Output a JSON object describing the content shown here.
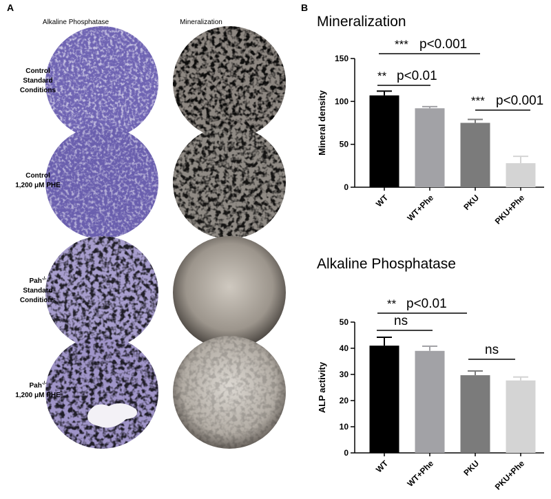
{
  "panel_a": {
    "label": "A",
    "columns": [
      "Alkaline Phosphatase",
      "Mineralization"
    ],
    "rows": [
      {
        "lines": [
          "Control",
          "Standard",
          "Conditions"
        ]
      },
      {
        "lines": [
          "Control",
          "1,200 μM PHE"
        ]
      },
      {
        "name": "Pah",
        "sup": "-/-",
        "lines": [
          "Standard",
          "Conditions"
        ]
      },
      {
        "name": "Pah",
        "sup": "-/-",
        "lines": [
          "1,200 μM PHE"
        ]
      }
    ]
  },
  "panel_b_label": "B",
  "chart_data": [
    {
      "type": "bar",
      "title": "Mineralization",
      "y_label": "Mineral density",
      "categories": [
        "WT",
        "WT+Phe",
        "PKU",
        "PKU+Phe"
      ],
      "values": [
        107,
        92,
        75,
        28
      ],
      "errors": [
        5,
        2,
        4,
        8
      ],
      "colors": [
        "#000000",
        "#a2a2a6",
        "#7b7b7b",
        "#d4d4d4"
      ],
      "ylim": [
        0,
        150
      ],
      "yticks": [
        0,
        50,
        100,
        150
      ],
      "annotations": [
        {
          "stars": "***",
          "label": "p<0.001"
        },
        {
          "stars": "**",
          "label": "p<0.01"
        },
        {
          "stars": "***",
          "label": "p<0.001"
        }
      ]
    },
    {
      "type": "bar",
      "title": "Alkaline Phosphatase",
      "y_label": "ALP activity",
      "categories": [
        "WT",
        "WT+Phe",
        "PKU",
        "PKU+Phe"
      ],
      "values": [
        41,
        39,
        29.7,
        27.7
      ],
      "errors": [
        3.2,
        1.8,
        1.6,
        1.3
      ],
      "colors": [
        "#000000",
        "#a2a2a6",
        "#7b7b7b",
        "#d4d4d4"
      ],
      "ylim": [
        0,
        50
      ],
      "yticks": [
        0,
        10,
        20,
        30,
        40,
        50
      ],
      "annotations": [
        {
          "stars": "**",
          "label": "p<0.01"
        },
        {
          "label": "ns"
        },
        {
          "label": "ns"
        }
      ]
    }
  ]
}
